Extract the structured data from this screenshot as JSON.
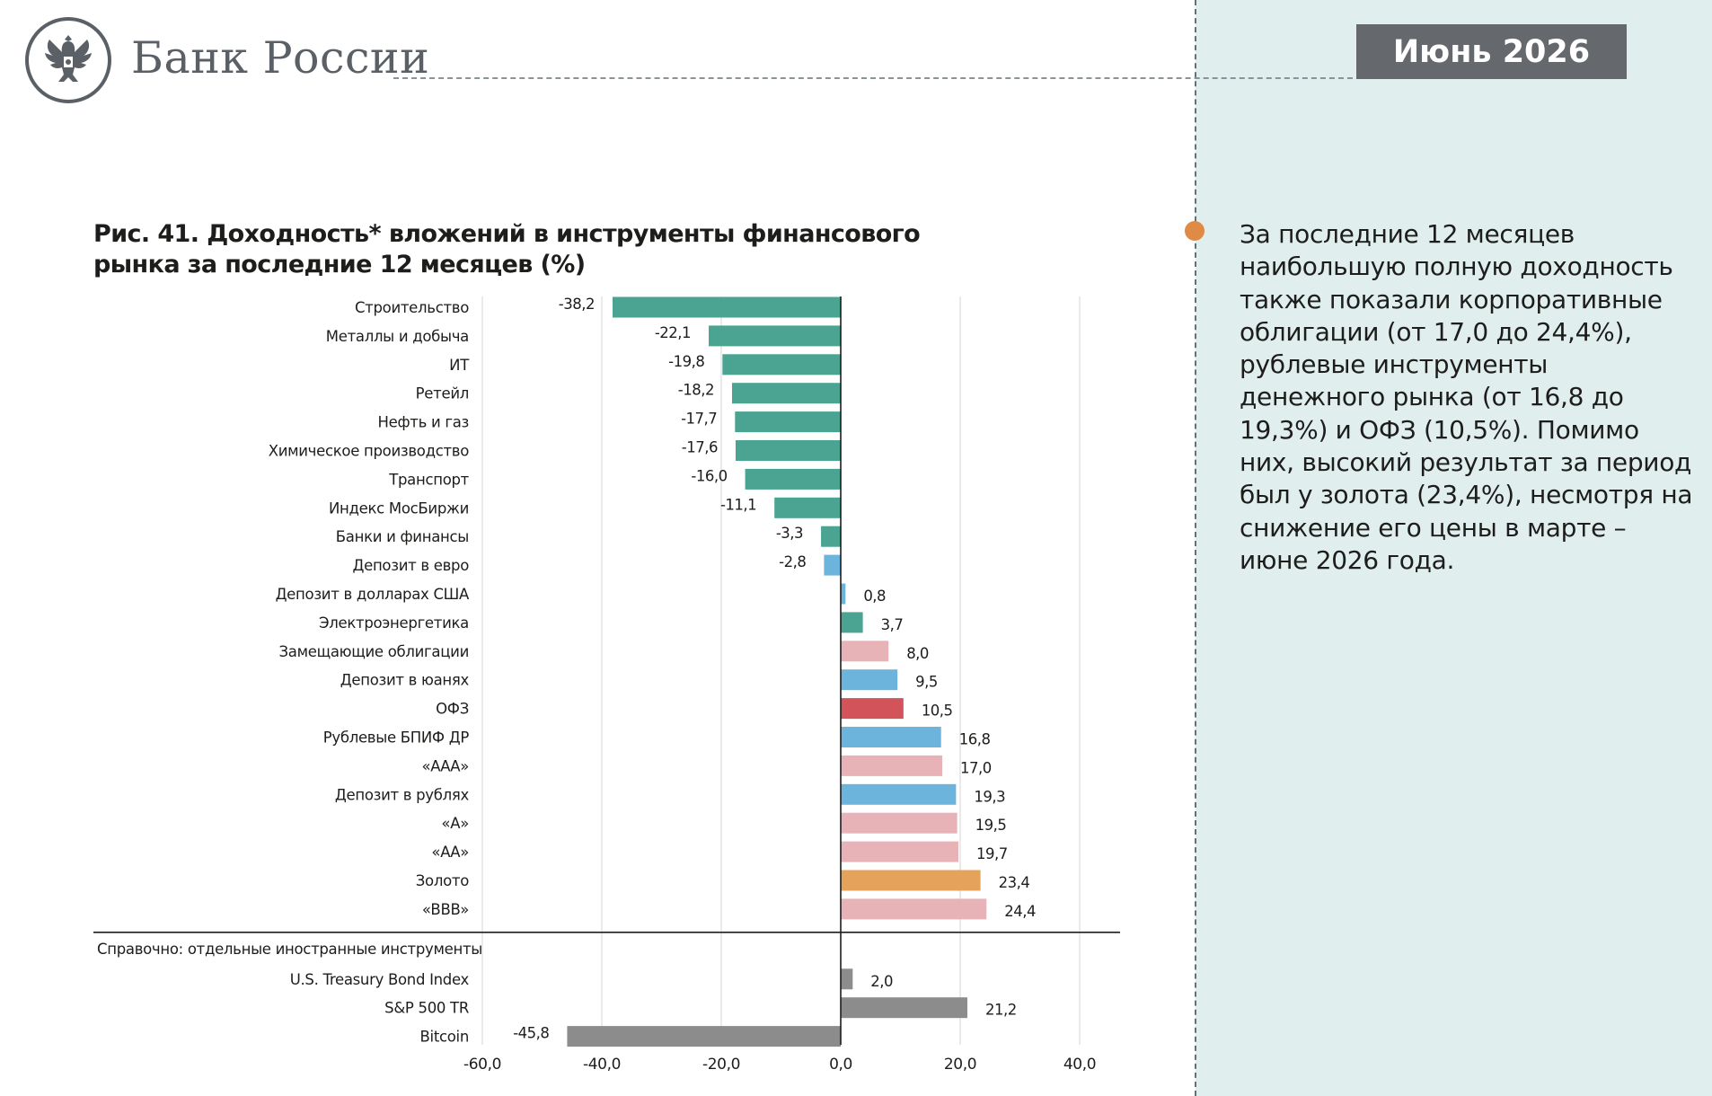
{
  "header": {
    "brand": "Банк России",
    "date": "Июнь 2026"
  },
  "figure_title": "Рис. 41. Доходность* вложений в инструменты финансового рынка за последние 12 месяцев (%)",
  "side_text": "За последние 12 месяцев наибольшую полную доходность также показали корпоративные облигации (от 17,0 до 24,4%), рублевые инструменты денежного рынка (от 16,8 до 19,3%) и ОФЗ (10,5%). Помимо них, высокий результат за период был у золота (23,4%), несмотря на снижение его цены в марте – июне 2026 года.",
  "colors": {
    "equity": "#4ba392",
    "deposit": "#6cb4dc",
    "bond": "#e8b3b6",
    "ofz": "#d2535a",
    "gold": "#e4a25a",
    "foreign": "#8c8c8c",
    "panel": "#e0eeee",
    "accent_dot": "#e08b45"
  },
  "chart_data": {
    "type": "bar",
    "orientation": "horizontal",
    "xlim": [
      -60,
      40
    ],
    "x_ticks": [
      -60,
      -40,
      -20,
      0,
      20,
      40
    ],
    "x_tick_labels": [
      "-60,0",
      "-40,0",
      "-20,0",
      "0,0",
      "20,0",
      "40,0"
    ],
    "grid": true,
    "section_label": "Справочно: отдельные иностранные инструменты",
    "categories": [
      {
        "label": "Строительство",
        "value": -38.2,
        "value_label": "-38,2",
        "group": "equity"
      },
      {
        "label": "Металлы и добыча",
        "value": -22.1,
        "value_label": "-22,1",
        "group": "equity"
      },
      {
        "label": "ИТ",
        "value": -19.8,
        "value_label": "-19,8",
        "group": "equity"
      },
      {
        "label": "Ретейл",
        "value": -18.2,
        "value_label": "-18,2",
        "group": "equity"
      },
      {
        "label": "Нефть и газ",
        "value": -17.7,
        "value_label": "-17,7",
        "group": "equity"
      },
      {
        "label": "Химическое производство",
        "value": -17.6,
        "value_label": "-17,6",
        "group": "equity"
      },
      {
        "label": "Транспорт",
        "value": -16.0,
        "value_label": "-16,0",
        "group": "equity"
      },
      {
        "label": "Индекс МосБиржи",
        "value": -11.1,
        "value_label": "-11,1",
        "group": "equity"
      },
      {
        "label": "Банки и финансы",
        "value": -3.3,
        "value_label": "-3,3",
        "group": "equity"
      },
      {
        "label": "Депозит в евро",
        "value": -2.8,
        "value_label": "-2,8",
        "group": "deposit"
      },
      {
        "label": "Депозит в долларах США",
        "value": 0.8,
        "value_label": "0,8",
        "group": "deposit"
      },
      {
        "label": "Электроэнергетика",
        "value": 3.7,
        "value_label": "3,7",
        "group": "equity"
      },
      {
        "label": "Замещающие облигации",
        "value": 8.0,
        "value_label": "8,0",
        "group": "bond"
      },
      {
        "label": "Депозит в юанях",
        "value": 9.5,
        "value_label": "9,5",
        "group": "deposit"
      },
      {
        "label": "ОФЗ",
        "value": 10.5,
        "value_label": "10,5",
        "group": "ofz"
      },
      {
        "label": "Рублевые БПИФ ДР",
        "value": 16.8,
        "value_label": "16,8",
        "group": "deposit"
      },
      {
        "label": "«ААА»",
        "value": 17.0,
        "value_label": "17,0",
        "group": "bond"
      },
      {
        "label": "Депозит в рублях",
        "value": 19.3,
        "value_label": "19,3",
        "group": "deposit"
      },
      {
        "label": "«А»",
        "value": 19.5,
        "value_label": "19,5",
        "group": "bond"
      },
      {
        "label": "«АА»",
        "value": 19.7,
        "value_label": "19,7",
        "group": "bond"
      },
      {
        "label": "Золото",
        "value": 23.4,
        "value_label": "23,4",
        "group": "gold"
      },
      {
        "label": "«BBB»",
        "value": 24.4,
        "value_label": "24,4",
        "group": "bond"
      }
    ],
    "reference": [
      {
        "label": "U.S. Treasury Bond Index",
        "value": 2.0,
        "value_label": "2,0",
        "group": "foreign"
      },
      {
        "label": "S&P 500 TR",
        "value": 21.2,
        "value_label": "21,2",
        "group": "foreign"
      },
      {
        "label": "Bitcoin",
        "value": -45.8,
        "value_label": "-45,8",
        "group": "foreign"
      }
    ]
  }
}
